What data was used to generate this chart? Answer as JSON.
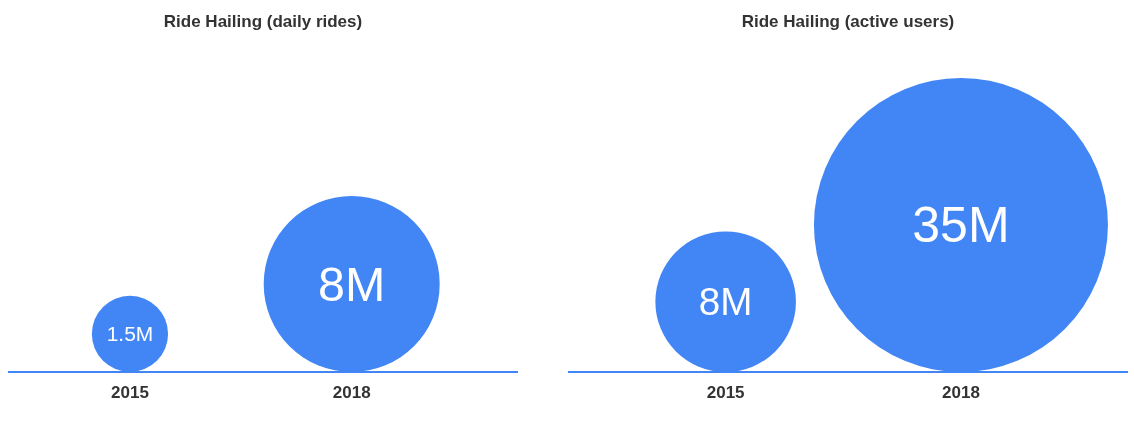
{
  "chart_data": [
    {
      "type": "other",
      "title": "Ride Hailing (daily rides)",
      "categories": [
        "2015",
        "2018"
      ],
      "values": [
        1.5,
        8
      ],
      "value_labels": [
        "1.5M",
        "8M"
      ],
      "color": "#4285f4"
    },
    {
      "type": "other",
      "title": "Ride Hailing (active users)",
      "categories": [
        "2015",
        "2018"
      ],
      "values": [
        8,
        35
      ],
      "value_labels": [
        "8M",
        "35M"
      ],
      "color": "#4285f4"
    }
  ]
}
